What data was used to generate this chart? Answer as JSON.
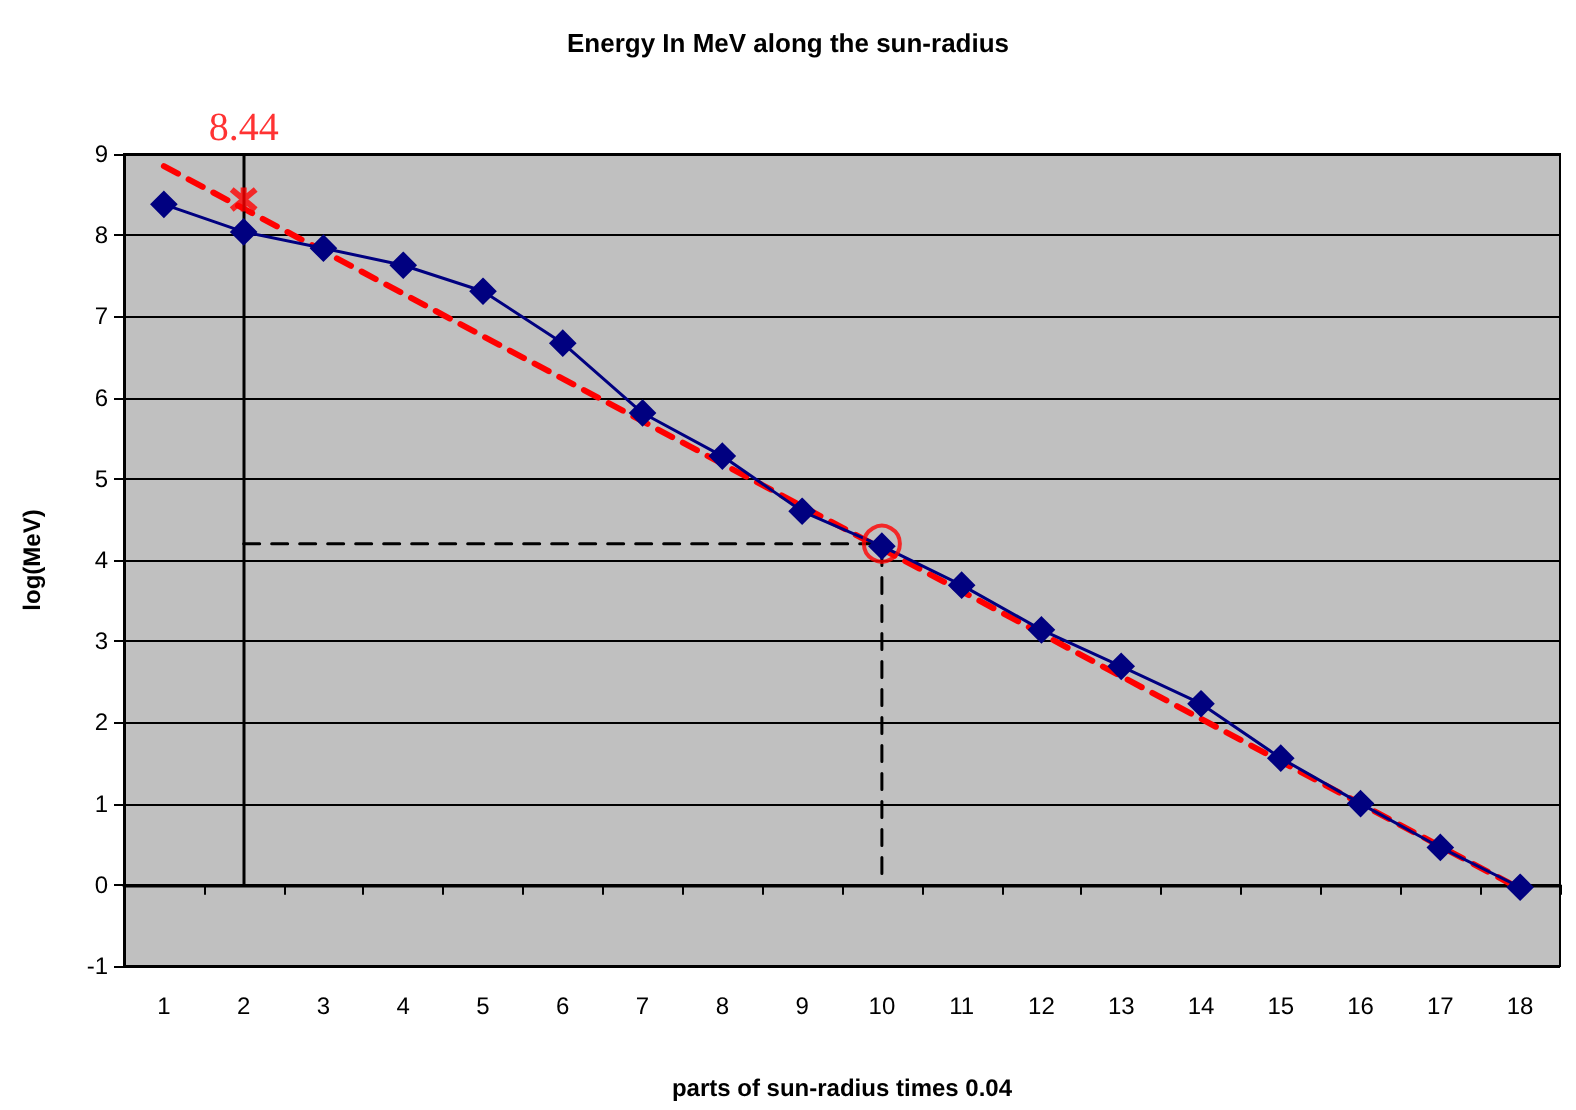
{
  "chart_data": {
    "type": "line",
    "title": "Energy In MeV along the sun-radius",
    "xlabel": "parts of sun-radius times 0.04",
    "ylabel": "log(MeV)",
    "categories": [
      "1",
      "2",
      "3",
      "4",
      "5",
      "6",
      "7",
      "8",
      "9",
      "10",
      "11",
      "12",
      "13",
      "14",
      "15",
      "16",
      "17",
      "18"
    ],
    "series": [
      {
        "color": "#000080",
        "marker": "diamond",
        "line_style": "solid",
        "values": [
          8.38,
          8.04,
          7.84,
          7.63,
          7.31,
          6.67,
          5.81,
          5.28,
          4.6,
          4.17,
          3.69,
          3.14,
          2.69,
          2.23,
          1.56,
          1.0,
          0.46,
          -0.03
        ]
      },
      {
        "type": "line",
        "color": "#ff0000",
        "marker": "none",
        "line_style": "dashed",
        "x": [
          "1",
          "18"
        ],
        "values": [
          8.85,
          -0.05
        ]
      },
      {
        "type": "line",
        "color": "#000000",
        "marker": "none",
        "line_style": "dashed",
        "x": [
          "2",
          "10",
          "10"
        ],
        "values": [
          4.2,
          4.2,
          0
        ]
      },
      {
        "type": "scatter",
        "color": "#ff0000",
        "marker": "cross",
        "data_labels": true,
        "x": [
          "2"
        ],
        "values": [
          8.44
        ]
      },
      {
        "type": "scatter",
        "color": "#ff0000",
        "marker": "circle",
        "x": [
          "10"
        ],
        "values": [
          4.2
        ]
      }
    ],
    "ylim": [
      -1,
      9
    ],
    "yticks": [
      -1,
      0,
      1,
      2,
      3,
      4,
      5,
      6,
      7,
      8,
      9
    ],
    "grid": "y",
    "ref_lines": [
      {
        "axis": "x",
        "value": "2",
        "color": "#000000",
        "line_style": "solid"
      }
    ]
  }
}
